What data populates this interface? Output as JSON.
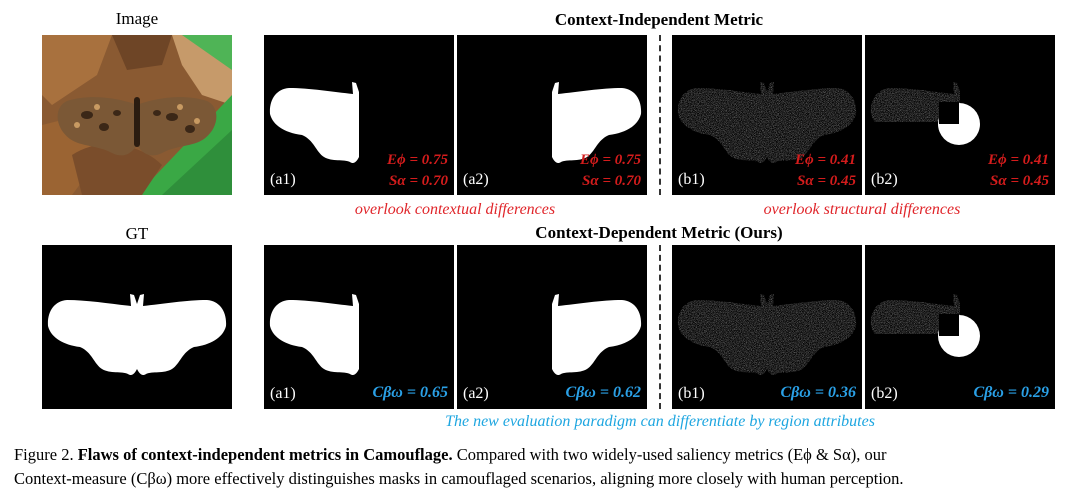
{
  "labels": {
    "image": "Image",
    "gt": "GT"
  },
  "headings": {
    "independent": "Context-Independent Metric",
    "dependent": "Context-Dependent Metric (Ours)"
  },
  "tags": {
    "a1": "(a1)",
    "a2": "(a2)",
    "b1": "(b1)",
    "b2": "(b2)"
  },
  "row1_metrics": {
    "a1": {
      "e": "Eϕ = 0.75",
      "s": "Sα = 0.70"
    },
    "a2": {
      "e": "Eϕ = 0.75",
      "s": "Sα = 0.70"
    },
    "b1": {
      "e": "Eϕ = 0.41",
      "s": "Sα = 0.45"
    },
    "b2": {
      "e": "Eϕ = 0.41",
      "s": "Sα = 0.45"
    }
  },
  "row2_metrics": {
    "a1": "Cβω = 0.65",
    "a2": "Cβω = 0.62",
    "b1": "Cβω = 0.36",
    "b2": "Cβω = 0.29"
  },
  "notes": {
    "contextual": "overlook contextual differences",
    "structural": "overlook structural differences",
    "paradigm": "The new evaluation paradigm can differentiate by region attributes"
  },
  "caption": {
    "figure": "Figure 2.",
    "title": "Flaws of context-independent metrics in Camouflage.",
    "text1": "Compared with two widely-used saliency metrics (Eϕ & Sα), our",
    "text2": "Context-measure (Cβω) more effectively distinguishes masks in camouflaged scenarios, aligning more closely with human perception."
  },
  "colors": {
    "red": "#d41c1c",
    "cyan": "#1ea6e0",
    "leaf_green": "#3aa845",
    "wood_brown": "#8a5a32"
  }
}
